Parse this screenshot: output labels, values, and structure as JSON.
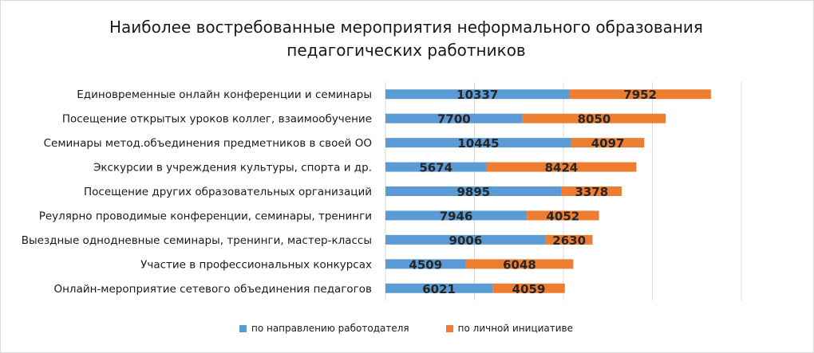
{
  "chart_data": {
    "type": "bar",
    "orientation": "horizontal",
    "stacked": true,
    "title_line1": "Наиболее востребованные мероприятия неформального образования",
    "title_line2": "педагогических работников",
    "categories": [
      "Единовременные онлайн конференции и семинары",
      "Посещение открытых уроков коллег, взаимообучение",
      "Семинары метод.объединения  предметников в своей ОО",
      "Экскурсии в учреждения культуры, спорта и др.",
      "Посещение других образовательных организаций",
      "Реулярно проводимые конференции, семинары, тренинги",
      "Выездные однодневные семинары, тренинги,  мастер-классы",
      "Участие в профессиональных конкурсах",
      "Онлайн-мероприятие сетевого объединения педагогов"
    ],
    "series": [
      {
        "name": "по направлению работодателя",
        "color": "#5b9bd5",
        "values": [
          10337,
          7700,
          10445,
          5674,
          9895,
          7946,
          9006,
          4509,
          6021
        ]
      },
      {
        "name": "по личной инициативе",
        "color": "#ed7d31",
        "values": [
          7952,
          8050,
          4097,
          8424,
          3378,
          4052,
          2630,
          6048,
          4059
        ]
      }
    ],
    "xlim": [
      0,
      20000
    ],
    "grid": true,
    "legend_position": "bottom"
  }
}
